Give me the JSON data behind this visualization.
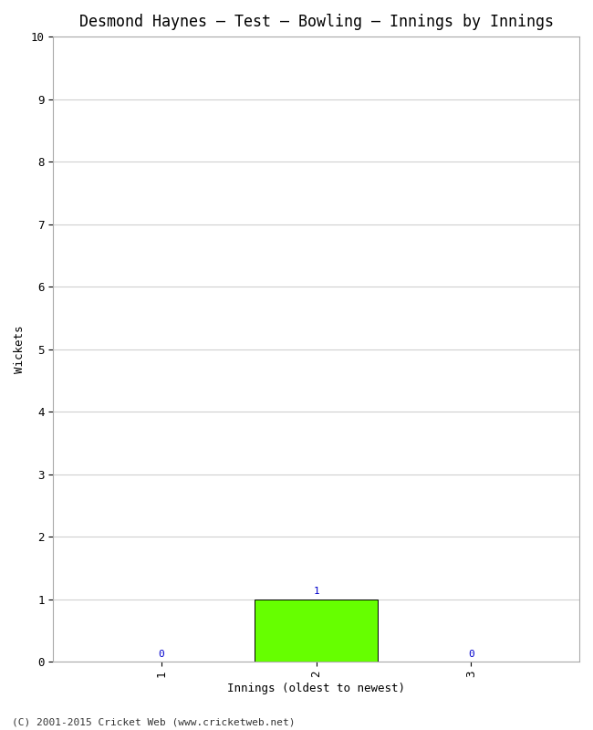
{
  "title": "Desmond Haynes – Test – Bowling – Innings by Innings",
  "xlabel": "Innings (oldest to newest)",
  "ylabel": "Wickets",
  "categories": [
    1,
    2,
    3
  ],
  "values": [
    0,
    1,
    0
  ],
  "bar_color": "#66ff00",
  "bar_edge_color": "#000000",
  "ylim": [
    0,
    10
  ],
  "yticks": [
    0,
    1,
    2,
    3,
    4,
    5,
    6,
    7,
    8,
    9,
    10
  ],
  "xticks": [
    1,
    2,
    3
  ],
  "background_color": "#ffffff",
  "plot_bg_color": "#f0f0f0",
  "grid_color": "#d0d0d0",
  "title_fontsize": 12,
  "label_fontsize": 9,
  "tick_fontsize": 9,
  "annotation_color": "#0000cc",
  "annotation_fontsize": 8,
  "footer": "(C) 2001-2015 Cricket Web (www.cricketweb.net)",
  "footer_fontsize": 8
}
